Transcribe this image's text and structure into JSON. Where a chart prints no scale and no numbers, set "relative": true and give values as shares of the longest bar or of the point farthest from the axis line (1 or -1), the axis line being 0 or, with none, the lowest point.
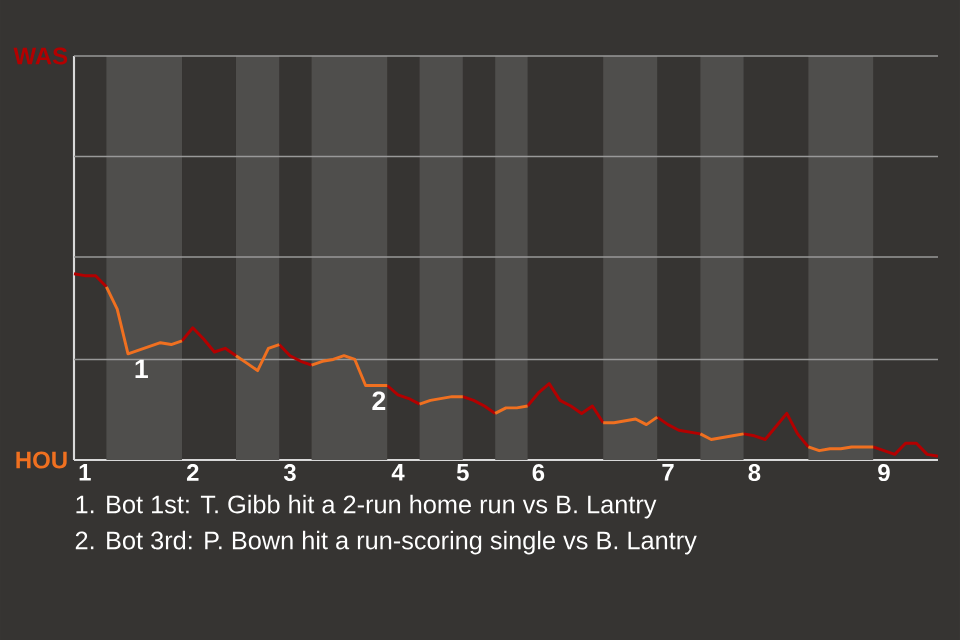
{
  "chart_data": {
    "type": "line",
    "relative": true,
    "categories": [
      null,
      "1",
      null,
      null,
      null,
      null,
      null,
      null,
      null,
      null,
      null,
      "2",
      null,
      null,
      null,
      null,
      null,
      null,
      null,
      null,
      "3",
      null,
      null,
      null,
      null,
      null,
      null,
      null,
      null,
      null,
      "4",
      null,
      null,
      null,
      null,
      null,
      "5",
      null,
      null,
      null,
      null,
      null,
      null,
      "6",
      null,
      null,
      null,
      null,
      null,
      null,
      null,
      null,
      null,
      null,
      null,
      "7",
      null,
      null,
      null,
      null,
      null,
      null,
      null,
      "8",
      null,
      null,
      null,
      null,
      null,
      null,
      null,
      null,
      null,
      null,
      null,
      "9",
      null,
      null,
      null,
      null,
      null
    ],
    "series": [
      {
        "name": "WAS",
        "color": "#b30000",
        "values": [
          1.0,
          0.99,
          0.99,
          0.93,
          null,
          null,
          null,
          null,
          null,
          null,
          0.64,
          0.71,
          0.65,
          0.58,
          0.6,
          0.56,
          null,
          null,
          null,
          0.62,
          0.56,
          0.53,
          0.51,
          null,
          null,
          null,
          null,
          null,
          null,
          0.4,
          0.35,
          0.33,
          0.3,
          null,
          null,
          null,
          0.34,
          0.32,
          0.29,
          0.25,
          null,
          null,
          0.29,
          0.36,
          0.41,
          0.32,
          0.29,
          0.25,
          0.29,
          0.2,
          null,
          null,
          null,
          null,
          0.23,
          0.19,
          0.16,
          0.15,
          0.14,
          null,
          null,
          null,
          0.14,
          0.13,
          0.11,
          0.18,
          0.25,
          0.14,
          0.07,
          null,
          null,
          null,
          null,
          null,
          0.07,
          0.05,
          0.03,
          0.09,
          0.09,
          0.03,
          0.02
        ]
      },
      {
        "name": "HOU",
        "color": "#f07020",
        "values": [
          null,
          null,
          null,
          0.93,
          0.81,
          0.57,
          0.59,
          0.61,
          0.63,
          0.62,
          0.64,
          null,
          null,
          null,
          null,
          0.56,
          0.52,
          0.48,
          0.6,
          0.62,
          null,
          null,
          0.51,
          0.53,
          0.54,
          0.56,
          0.54,
          0.4,
          0.4,
          0.4,
          null,
          null,
          0.3,
          0.32,
          0.33,
          0.34,
          0.34,
          null,
          null,
          0.25,
          0.28,
          0.28,
          0.29,
          null,
          null,
          null,
          null,
          null,
          null,
          0.2,
          0.2,
          0.21,
          0.22,
          0.19,
          0.23,
          null,
          null,
          null,
          0.14,
          0.11,
          0.12,
          0.13,
          0.14,
          null,
          null,
          null,
          null,
          null,
          0.07,
          0.05,
          0.06,
          0.06,
          0.07,
          0.07,
          0.07,
          null,
          null,
          null,
          null,
          null,
          null
        ]
      }
    ],
    "ref_lines": [
      {
        "axis": "y",
        "value": 0.54,
        "color": "#999999"
      },
      {
        "axis": "y",
        "value": 1.09,
        "color": "#999999"
      },
      {
        "axis": "y",
        "value": 1.63,
        "color": "#999999"
      },
      {
        "axis": "y",
        "value": 2.17,
        "color": "#999999"
      }
    ],
    "annotations": [
      {
        "text": "1",
        "y": 0.57
      },
      {
        "text": "2",
        "y": 0.4
      },
      "1. Bot 1st: T. Gibb hit a 2-run home run vs B. Lantry",
      "2. Bot 3rd: P. Bown hit a run-scoring single vs B. Lantry"
    ]
  }
}
